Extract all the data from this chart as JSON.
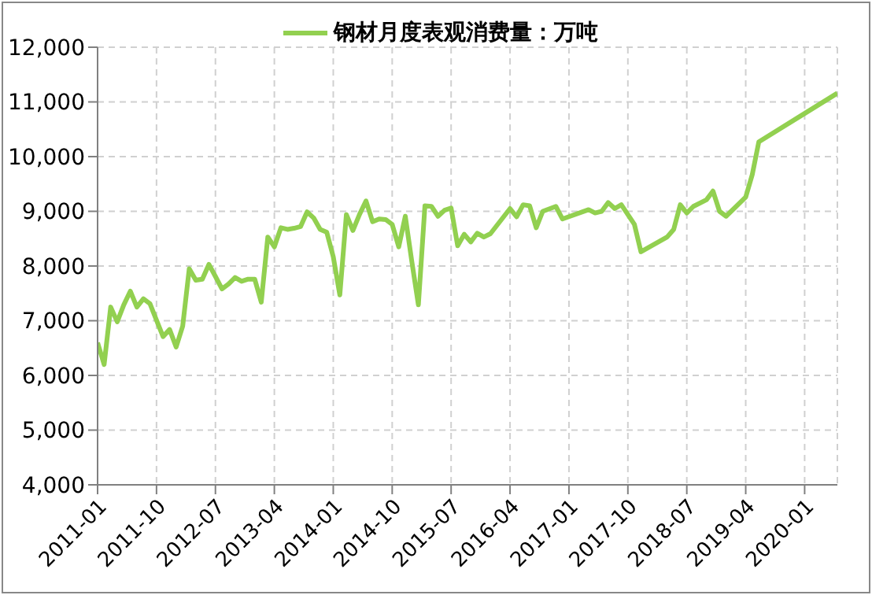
{
  "chart_data": {
    "type": "line",
    "x": [
      "2011-01",
      "2011-02",
      "2011-03",
      "2011-04",
      "2011-05",
      "2011-06",
      "2011-07",
      "2011-08",
      "2011-09",
      "2011-10",
      "2011-11",
      "2011-12",
      "2012-01",
      "2012-02",
      "2012-03",
      "2012-04",
      "2012-05",
      "2012-06",
      "2012-07",
      "2012-08",
      "2012-09",
      "2012-10",
      "2012-11",
      "2012-12",
      "2013-01",
      "2013-02",
      "2013-03",
      "2013-04",
      "2013-05",
      "2013-06",
      "2013-07",
      "2013-08",
      "2013-09",
      "2013-10",
      "2013-11",
      "2013-12",
      "2014-01",
      "2014-02",
      "2014-03",
      "2014-04",
      "2014-05",
      "2014-06",
      "2014-07",
      "2014-08",
      "2014-09",
      "2014-10",
      "2014-11",
      "2014-12",
      "2015-01",
      "2015-02",
      "2015-03",
      "2015-04",
      "2015-05",
      "2015-06",
      "2015-07",
      "2015-08",
      "2015-09",
      "2015-10",
      "2015-11",
      "2015-12",
      "2016-01",
      "2016-04",
      "2016-05",
      "2016-06",
      "2016-07",
      "2016-08",
      "2016-09",
      "2016-11",
      "2016-12",
      "2017-04",
      "2017-05",
      "2017-06",
      "2017-07",
      "2017-08",
      "2017-09",
      "2017-11",
      "2017-12",
      "2018-04",
      "2018-05",
      "2018-06",
      "2018-07",
      "2018-08",
      "2018-10",
      "2018-11",
      "2018-12",
      "2019-01",
      "2019-04",
      "2019-05",
      "2019-06",
      "2020-06"
    ],
    "series": [
      {
        "name": "钢材月度表观消费量：万吨",
        "color": "#92d050",
        "values": [
          6600,
          6200,
          7250,
          6980,
          7290,
          7540,
          7250,
          7400,
          7310,
          7010,
          6710,
          6840,
          6520,
          6900,
          7950,
          7740,
          7760,
          8030,
          7810,
          7580,
          7670,
          7790,
          7720,
          7760,
          7760,
          7340,
          8530,
          8350,
          8700,
          8670,
          8690,
          8720,
          8990,
          8880,
          8670,
          8620,
          8170,
          7470,
          8940,
          8650,
          8940,
          9190,
          8810,
          8860,
          8850,
          8760,
          8350,
          8910,
          8080,
          7290,
          9100,
          9090,
          8910,
          9020,
          9060,
          8370,
          8580,
          8440,
          8600,
          8530,
          8590,
          9050,
          8900,
          9120,
          9100,
          8700,
          9000,
          9090,
          8860,
          9030,
          8970,
          9000,
          9160,
          9050,
          9120,
          8760,
          8260,
          8530,
          8670,
          9120,
          8970,
          9090,
          9210,
          9370,
          9000,
          8910,
          9260,
          9670,
          10270,
          11160
        ]
      }
    ],
    "xlim": [
      "2011-01",
      "2020-06"
    ],
    "xticks": [
      "2011-01",
      "2011-10",
      "2012-07",
      "2013-04",
      "2014-01",
      "2014-10",
      "2015-07",
      "2016-04",
      "2017-01",
      "2017-10",
      "2018-07",
      "2019-04",
      "2020-01"
    ],
    "ylim": [
      4000,
      12000
    ],
    "yticks": [
      {
        "value": 4000,
        "label": "4,000"
      },
      {
        "value": 5000,
        "label": "5,000"
      },
      {
        "value": 6000,
        "label": "6,000"
      },
      {
        "value": 7000,
        "label": "7,000"
      },
      {
        "value": 8000,
        "label": "8,000"
      },
      {
        "value": 9000,
        "label": "9,000"
      },
      {
        "value": 10000,
        "label": "10,000"
      },
      {
        "value": 11000,
        "label": "11,000"
      },
      {
        "value": 12000,
        "label": "12,000"
      }
    ],
    "grid": true,
    "legend": "top",
    "marker": "none",
    "line_style": "solid"
  }
}
